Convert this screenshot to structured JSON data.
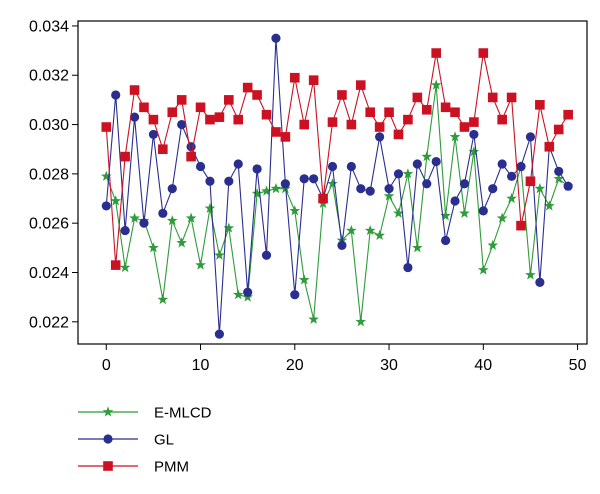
{
  "chart_data": {
    "type": "line",
    "title": "",
    "xlabel": "",
    "ylabel": "",
    "xlim": [
      -3,
      51
    ],
    "ylim": [
      0.0211,
      0.0342
    ],
    "xticks": [
      "0",
      "10",
      "20",
      "30",
      "40",
      "50"
    ],
    "yticks": [
      "0.022",
      "0.024",
      "0.026",
      "0.028",
      "0.030",
      "0.032",
      "0.034"
    ],
    "x": [
      0,
      1,
      2,
      3,
      4,
      5,
      6,
      7,
      8,
      9,
      10,
      11,
      12,
      13,
      14,
      15,
      16,
      17,
      18,
      19,
      20,
      21,
      22,
      23,
      24,
      25,
      26,
      27,
      28,
      29,
      30,
      31,
      32,
      33,
      34,
      35,
      36,
      37,
      38,
      39,
      40,
      41,
      42,
      43,
      44,
      45,
      46,
      47,
      48,
      49
    ],
    "legend_position": "bottom-left",
    "series": [
      {
        "name": "E-MLCD",
        "color": "#2e9c3a",
        "marker": "star",
        "values": [
          0.0279,
          0.0269,
          0.0242,
          0.0262,
          0.0261,
          0.025,
          0.0229,
          0.0261,
          0.0252,
          0.0262,
          0.0243,
          0.0266,
          0.0247,
          0.0258,
          0.0231,
          0.023,
          0.0272,
          0.0273,
          0.0274,
          0.0274,
          0.0265,
          0.0237,
          0.0221,
          0.0268,
          0.0276,
          0.0253,
          0.0257,
          0.022,
          0.0257,
          0.0255,
          0.0271,
          0.0264,
          0.028,
          0.025,
          0.0287,
          0.0316,
          0.0263,
          0.0295,
          0.0264,
          0.0289,
          0.0241,
          0.0251,
          0.0262,
          0.027,
          0.0283,
          0.0239,
          0.0274,
          0.0267,
          0.0278,
          0.0275
        ]
      },
      {
        "name": "GL",
        "color": "#2a2e8f",
        "marker": "circle",
        "values": [
          0.0267,
          0.0312,
          0.0257,
          0.0303,
          0.026,
          0.0296,
          0.0264,
          0.0274,
          0.03,
          0.0291,
          0.0283,
          0.0277,
          0.0215,
          0.0277,
          0.0284,
          0.0232,
          0.0282,
          0.0247,
          0.0335,
          0.0276,
          0.0231,
          0.0278,
          0.0278,
          0.027,
          0.0283,
          0.0251,
          0.0283,
          0.0274,
          0.0273,
          0.0295,
          0.0274,
          0.028,
          0.0242,
          0.0284,
          0.0276,
          0.0285,
          0.0253,
          0.0269,
          0.0276,
          0.0296,
          0.0265,
          0.0274,
          0.0284,
          0.0279,
          0.0283,
          0.0295,
          0.0236,
          0.0291,
          0.0281,
          0.0275
        ]
      },
      {
        "name": "PMM",
        "color": "#cc1122",
        "marker": "square",
        "values": [
          0.0299,
          0.0243,
          0.0287,
          0.0314,
          0.0307,
          0.0302,
          0.029,
          0.0305,
          0.031,
          0.0287,
          0.0307,
          0.0302,
          0.0303,
          0.031,
          0.0302,
          0.0315,
          0.0312,
          0.0304,
          0.0297,
          0.0295,
          0.0319,
          0.03,
          0.0318,
          0.027,
          0.0301,
          0.0312,
          0.03,
          0.0316,
          0.0305,
          0.0299,
          0.0305,
          0.0296,
          0.0302,
          0.0311,
          0.0306,
          0.0329,
          0.0307,
          0.0305,
          0.0299,
          0.0301,
          0.0329,
          0.0311,
          0.0302,
          0.0311,
          0.0259,
          0.0277,
          0.0308,
          0.0291,
          0.0298,
          0.0304
        ]
      }
    ]
  }
}
